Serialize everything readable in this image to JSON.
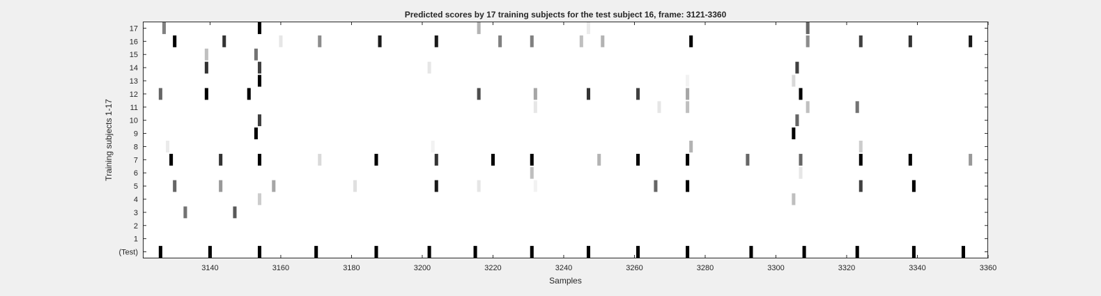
{
  "chart_data": {
    "type": "heatmap",
    "title": "Predicted scores by 17 training subjects for the test subject 16, frame: 3121-3360",
    "xlabel": "Samples",
    "ylabel": "Training subjects 1-17",
    "xlim": [
      3121,
      3360
    ],
    "x_ticks": [
      3140,
      3160,
      3180,
      3200,
      3220,
      3240,
      3260,
      3280,
      3300,
      3320,
      3340,
      3360
    ],
    "y_tick_labels": [
      "(Test)",
      "1",
      "2",
      "3",
      "4",
      "5",
      "6",
      "7",
      "8",
      "9",
      "10",
      "11",
      "12",
      "13",
      "14",
      "15",
      "16",
      "17"
    ],
    "colormap": "gray-inverted",
    "background": "#ffffff",
    "grid": false,
    "rows": [
      {
        "label": "17",
        "points": [
          [
            3127,
            0.5
          ],
          [
            3154,
            1.0
          ],
          [
            3216,
            0.3
          ],
          [
            3247,
            0.08
          ],
          [
            3309,
            0.6
          ]
        ]
      },
      {
        "label": "16",
        "points": [
          [
            3130,
            1.0
          ],
          [
            3144,
            0.8
          ],
          [
            3160,
            0.1
          ],
          [
            3171,
            0.45
          ],
          [
            3188,
            0.9
          ],
          [
            3204,
            0.9
          ],
          [
            3222,
            0.5
          ],
          [
            3231,
            0.5
          ],
          [
            3245,
            0.25
          ],
          [
            3251,
            0.3
          ],
          [
            3276,
            1.0
          ],
          [
            3309,
            0.45
          ],
          [
            3324,
            0.75
          ],
          [
            3338,
            0.8
          ],
          [
            3355,
            0.9
          ]
        ]
      },
      {
        "label": "15",
        "points": [
          [
            3139,
            0.25
          ],
          [
            3153,
            0.55
          ]
        ]
      },
      {
        "label": "14",
        "points": [
          [
            3139,
            0.8
          ],
          [
            3154,
            0.75
          ],
          [
            3202,
            0.1
          ],
          [
            3306,
            0.75
          ]
        ]
      },
      {
        "label": "13",
        "points": [
          [
            3154,
            1.0
          ],
          [
            3275,
            0.05
          ],
          [
            3305,
            0.15
          ]
        ]
      },
      {
        "label": "12",
        "points": [
          [
            3126,
            0.6
          ],
          [
            3139,
            1.0
          ],
          [
            3151,
            1.0
          ],
          [
            3216,
            0.7
          ],
          [
            3232,
            0.35
          ],
          [
            3247,
            0.8
          ],
          [
            3261,
            0.75
          ],
          [
            3275,
            0.35
          ],
          [
            3307,
            1.0
          ]
        ]
      },
      {
        "label": "11",
        "points": [
          [
            3232,
            0.1
          ],
          [
            3267,
            0.1
          ],
          [
            3275,
            0.25
          ],
          [
            3309,
            0.25
          ],
          [
            3323,
            0.55
          ]
        ]
      },
      {
        "label": "10",
        "points": [
          [
            3154,
            0.75
          ],
          [
            3306,
            0.6
          ]
        ]
      },
      {
        "label": "9",
        "points": [
          [
            3153,
            1.0
          ],
          [
            3305,
            1.0
          ]
        ]
      },
      {
        "label": "8",
        "points": [
          [
            3128,
            0.08
          ],
          [
            3203,
            0.05
          ],
          [
            3276,
            0.3
          ],
          [
            3324,
            0.2
          ]
        ]
      },
      {
        "label": "7",
        "points": [
          [
            3129,
            1.0
          ],
          [
            3143,
            0.8
          ],
          [
            3154,
            1.0
          ],
          [
            3171,
            0.15
          ],
          [
            3187,
            1.0
          ],
          [
            3204,
            0.8
          ],
          [
            3220,
            1.0
          ],
          [
            3231,
            1.0
          ],
          [
            3250,
            0.3
          ],
          [
            3261,
            1.0
          ],
          [
            3275,
            1.0
          ],
          [
            3292,
            0.6
          ],
          [
            3307,
            0.6
          ],
          [
            3324,
            1.0
          ],
          [
            3338,
            1.0
          ],
          [
            3355,
            0.4
          ]
        ]
      },
      {
        "label": "6",
        "points": [
          [
            3231,
            0.25
          ],
          [
            3307,
            0.1
          ]
        ]
      },
      {
        "label": "5",
        "points": [
          [
            3130,
            0.6
          ],
          [
            3143,
            0.4
          ],
          [
            3158,
            0.35
          ],
          [
            3181,
            0.12
          ],
          [
            3204,
            0.9
          ],
          [
            3216,
            0.1
          ],
          [
            3232,
            0.05
          ],
          [
            3266,
            0.6
          ],
          [
            3275,
            1.0
          ],
          [
            3324,
            0.75
          ],
          [
            3339,
            1.0
          ]
        ]
      },
      {
        "label": "4",
        "points": [
          [
            3154,
            0.2
          ],
          [
            3305,
            0.25
          ]
        ]
      },
      {
        "label": "3",
        "points": [
          [
            3133,
            0.55
          ],
          [
            3147,
            0.65
          ]
        ]
      },
      {
        "label": "2",
        "points": []
      },
      {
        "label": "1",
        "points": []
      },
      {
        "label": "(Test)",
        "points": [
          [
            3126,
            1.0
          ],
          [
            3140,
            1.0
          ],
          [
            3154,
            1.0
          ],
          [
            3170,
            1.0
          ],
          [
            3187,
            1.0
          ],
          [
            3202,
            1.0
          ],
          [
            3215,
            1.0
          ],
          [
            3231,
            1.0
          ],
          [
            3247,
            1.0
          ],
          [
            3261,
            1.0
          ],
          [
            3275,
            1.0
          ],
          [
            3293,
            1.0
          ],
          [
            3308,
            1.0
          ],
          [
            3323,
            1.0
          ],
          [
            3339,
            1.0
          ],
          [
            3353,
            1.0
          ]
        ]
      }
    ]
  }
}
